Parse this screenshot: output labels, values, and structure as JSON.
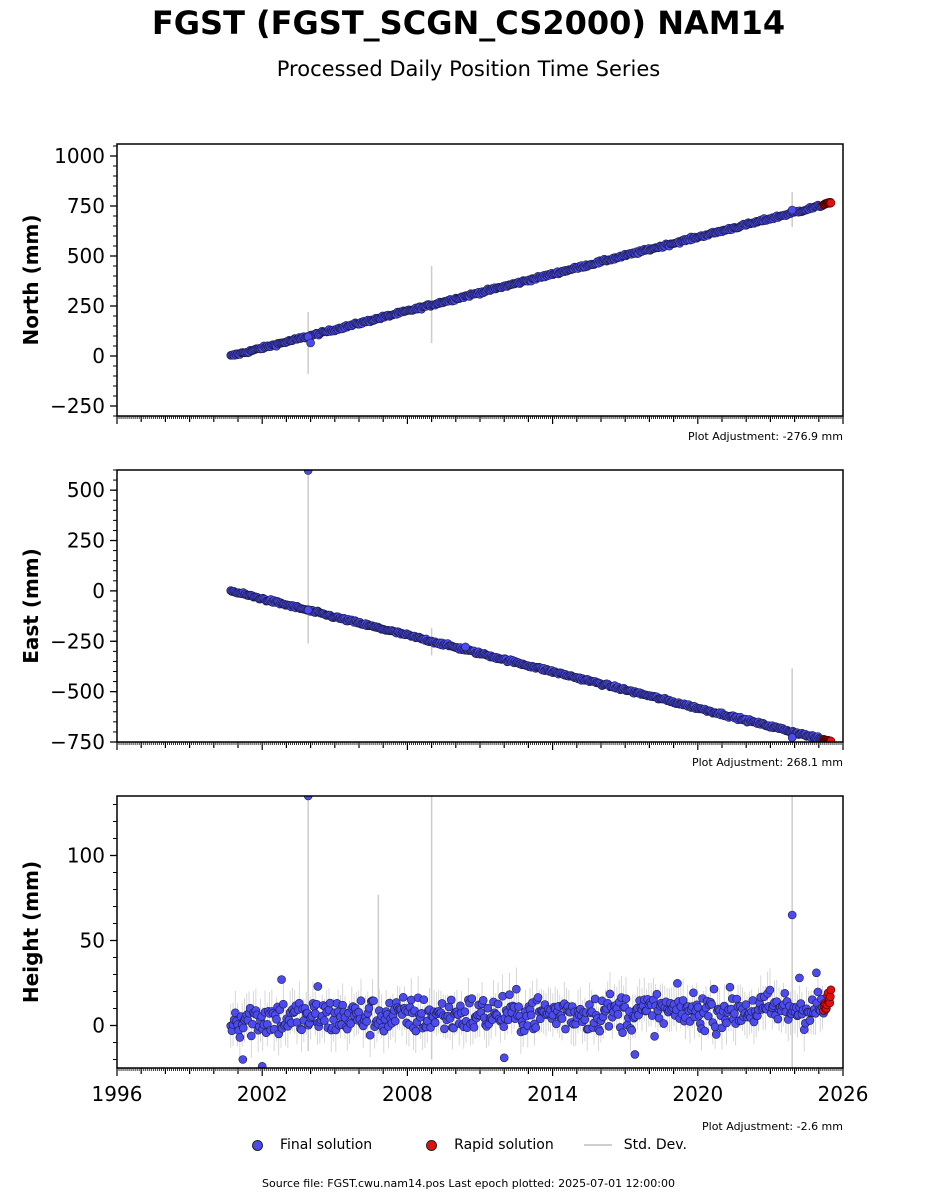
{
  "header": {
    "title": "FGST (FGST_SCGN_CS2000) NAM14",
    "subtitle": "Processed Daily Position Time Series"
  },
  "colors": {
    "final": "#4b4bf0",
    "final_edge": "#1a1a40",
    "rapid": "#e01010",
    "stddev": "#cccccc"
  },
  "legend": {
    "final": "Final solution",
    "rapid": "Rapid solution",
    "stddev": "Std. Dev."
  },
  "footer": {
    "text": "Source file: FGST.cwu.nam14.pos  Last epoch plotted: 2025-07-01 12:00:00"
  },
  "chart_data": [
    {
      "type": "scatter",
      "ylabel": "North (mm)",
      "adjustment": "Plot Adjustment: -276.9 mm",
      "xlim": [
        1996,
        2026
      ],
      "ylim": [
        -300,
        1060
      ],
      "yticks": [
        -250,
        0,
        250,
        500,
        750,
        1000
      ],
      "ytick_labels": [
        "−250",
        "0",
        "250",
        "500",
        "750",
        "1000"
      ],
      "series": [
        {
          "name": "Final solution",
          "trend": {
            "x": [
              2000.7,
              2025.2
            ],
            "y": [
              0,
              755
            ]
          },
          "noise": 5,
          "outliers": [
            {
              "x": 2003.9,
              "y": 95
            },
            {
              "x": 2004.0,
              "y": 65
            },
            {
              "x": 2023.9,
              "y": 730
            }
          ]
        },
        {
          "name": "Rapid solution",
          "trend": {
            "x": [
              2025.2,
              2025.5
            ],
            "y": [
              758,
              768
            ]
          },
          "noise": 2
        }
      ],
      "stddev_bars": [
        {
          "x": 2003.9,
          "y1": -90,
          "y2": 220
        },
        {
          "x": 2009.0,
          "y1": 65,
          "y2": 450
        },
        {
          "x": 2023.9,
          "y1": 645,
          "y2": 820
        }
      ]
    },
    {
      "type": "scatter",
      "ylabel": "East (mm)",
      "adjustment": "Plot Adjustment: 268.1 mm",
      "xlim": [
        1996,
        2026
      ],
      "ylim": [
        -750,
        600
      ],
      "yticks": [
        -750,
        -500,
        -250,
        0,
        250,
        500
      ],
      "ytick_labels": [
        "−750",
        "−500",
        "−250",
        "0",
        "250",
        "500"
      ],
      "series": [
        {
          "name": "Final solution",
          "trend": {
            "x": [
              2000.7,
              2025.2
            ],
            "y": [
              0,
              -738
            ]
          },
          "noise": 5,
          "outliers": [
            {
              "x": 2003.9,
              "y": 598
            },
            {
              "x": 2003.9,
              "y": -95
            },
            {
              "x": 2010.4,
              "y": -278
            },
            {
              "x": 2023.9,
              "y": -728
            }
          ]
        },
        {
          "name": "Rapid solution",
          "trend": {
            "x": [
              2025.2,
              2025.5
            ],
            "y": [
              -740,
              -745
            ]
          },
          "noise": 2
        }
      ],
      "stddev_bars": [
        {
          "x": 2003.9,
          "y1": -262,
          "y2": 590
        },
        {
          "x": 2009.0,
          "y1": -320,
          "y2": -185
        },
        {
          "x": 2023.9,
          "y1": -870,
          "y2": -385
        }
      ]
    },
    {
      "type": "scatter",
      "ylabel": "Height (mm)",
      "adjustment": "Plot Adjustment: -2.6 mm",
      "xlim": [
        1996,
        2026
      ],
      "ylim": [
        -25,
        135
      ],
      "yticks": [
        0,
        50,
        100
      ],
      "ytick_labels": [
        "0",
        "50",
        "100"
      ],
      "xticks": [
        1996,
        2002,
        2008,
        2014,
        2020,
        2026
      ],
      "xtick_labels": [
        "1996",
        "2002",
        "2008",
        "2014",
        "2020",
        "2026"
      ],
      "series": [
        {
          "name": "Final solution",
          "trend": {
            "x": [
              2000.7,
              2025.2
            ],
            "y": [
              4,
              10
            ]
          },
          "noise": 8,
          "outliers": [
            {
              "x": 2003.9,
              "y": 135
            },
            {
              "x": 2023.9,
              "y": 65
            },
            {
              "x": 2002.8,
              "y": 27
            },
            {
              "x": 2004.3,
              "y": 23
            },
            {
              "x": 2001.2,
              "y": -20
            },
            {
              "x": 2002.0,
              "y": -24
            },
            {
              "x": 2012.0,
              "y": -19
            },
            {
              "x": 2024.2,
              "y": 28
            },
            {
              "x": 2024.9,
              "y": 31
            },
            {
              "x": 2017.4,
              "y": -17
            }
          ]
        },
        {
          "name": "Rapid solution",
          "trend": {
            "x": [
              2025.2,
              2025.5
            ],
            "y": [
              10,
              16
            ]
          },
          "noise": 4
        }
      ],
      "stddev_bars": [
        {
          "x": 2003.9,
          "y1": -15,
          "y2": 135
        },
        {
          "x": 2006.8,
          "y1": -5,
          "y2": 77
        },
        {
          "x": 2009.0,
          "y1": -20,
          "y2": 135
        },
        {
          "x": 2023.9,
          "y1": -25,
          "y2": 135
        }
      ]
    }
  ]
}
